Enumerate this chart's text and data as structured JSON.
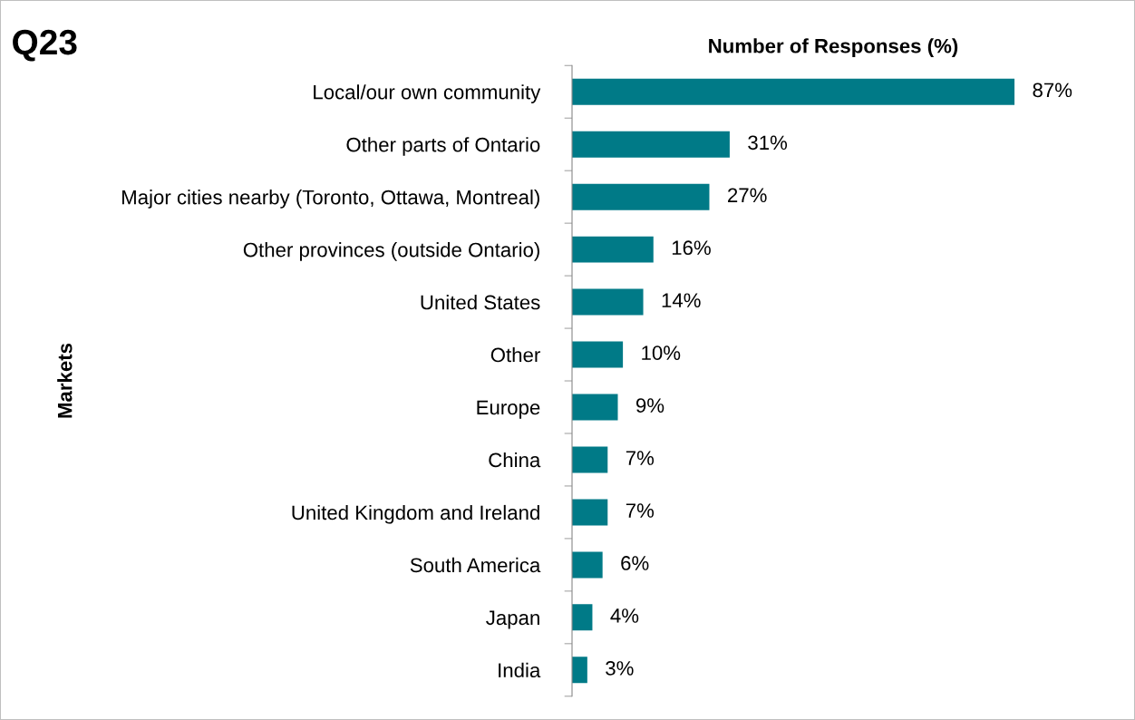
{
  "chart_data": {
    "type": "bar",
    "orientation": "horizontal",
    "title": "Q23",
    "xlabel": "Number of Responses (%)",
    "ylabel": "Markets",
    "categories": [
      "Local/our own community",
      "Other parts of Ontario",
      "Major cities nearby (Toronto, Ottawa, Montreal)",
      "Other provinces (outside Ontario)",
      "United States",
      "Other",
      "Europe",
      "China",
      "United Kingdom and Ireland",
      "South America",
      "Japan",
      "India"
    ],
    "values": [
      87,
      31,
      27,
      16,
      14,
      10,
      9,
      7,
      7,
      6,
      4,
      3
    ],
    "value_labels": [
      "87%",
      "31%",
      "27%",
      "16%",
      "14%",
      "10%",
      "9%",
      "7%",
      "7%",
      "6%",
      "4%",
      "3%"
    ],
    "color": "#007a87",
    "grid": false,
    "legend": false
  }
}
